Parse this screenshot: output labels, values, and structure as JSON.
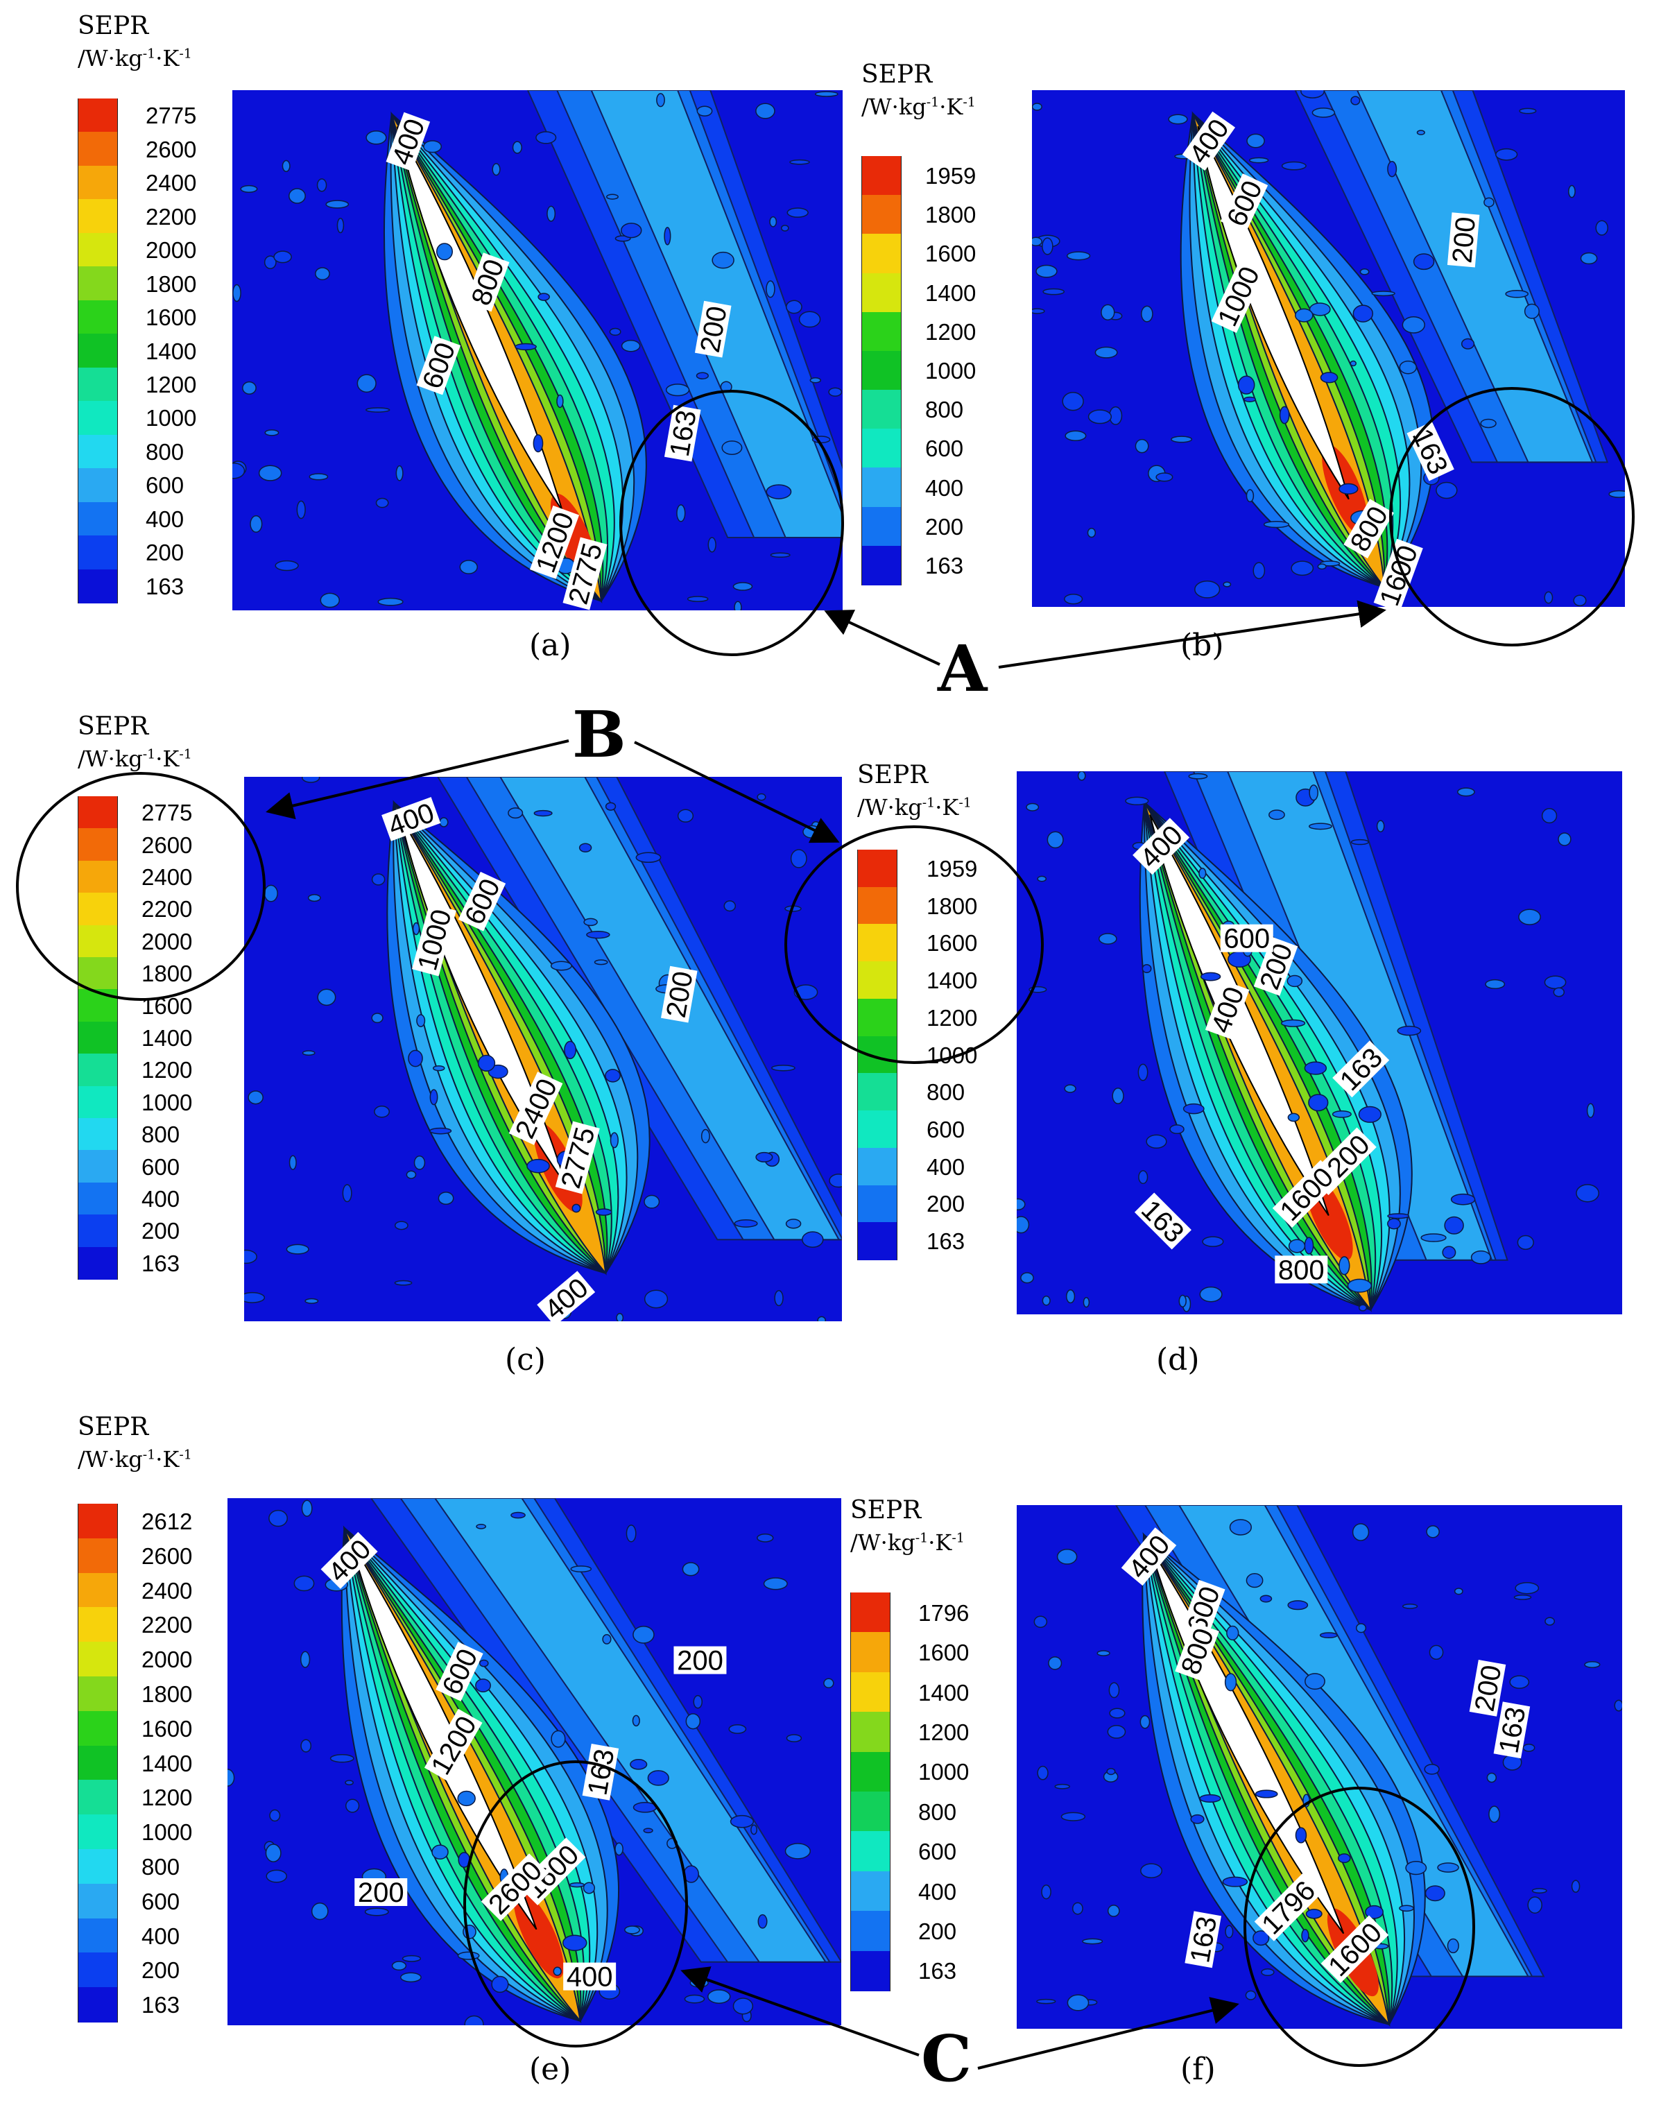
{
  "legend_title": "SEPR",
  "legend_unit_prefix": "/W·kg",
  "legend_unit_mid": "·K",
  "legend_unit_sup": "-1",
  "color_scale": [
    "#0a10d8",
    "#0b3ff0",
    "#1373f2",
    "#2aa9f2",
    "#22d8f0",
    "#10e8c0",
    "#15de95",
    "#12d05a",
    "#10c225",
    "#2bd21a",
    "#84d81c",
    "#d6e60e",
    "#f7d20c",
    "#f6a70a",
    "#f26a08",
    "#e82a08"
  ],
  "panel_captions": [
    "(a)",
    "(b)",
    "(c)",
    "(d)",
    "(e)",
    "(f)"
  ],
  "callouts": {
    "A": "A",
    "B": "B",
    "C": "C"
  },
  "chart_data": [
    {
      "type": "heatmap",
      "panel": "(a)",
      "title": "SEPR /W·kg-1·K-1",
      "legend_levels": [
        "2775",
        "2600",
        "2400",
        "2200",
        "2000",
        "1800",
        "1600",
        "1400",
        "1200",
        "1000",
        "800",
        "600",
        "400",
        "200",
        "163"
      ],
      "contour_labels": [
        "400",
        "800",
        "600",
        "200",
        "163",
        "1200",
        "2775"
      ]
    },
    {
      "type": "heatmap",
      "panel": "(b)",
      "title": "SEPR /W·kg-1·K-1",
      "legend_levels": [
        "1959",
        "1800",
        "1600",
        "1400",
        "1200",
        "1000",
        "800",
        "600",
        "400",
        "200",
        "163"
      ],
      "contour_labels": [
        "400",
        "600",
        "1000",
        "200",
        "163",
        "800",
        "1600"
      ]
    },
    {
      "type": "heatmap",
      "panel": "(c)",
      "title": "SEPR /W·kg-1·K-1",
      "legend_levels": [
        "2775",
        "2600",
        "2400",
        "2200",
        "2000",
        "1800",
        "1600",
        "1400",
        "1200",
        "1000",
        "800",
        "600",
        "400",
        "200",
        "163"
      ],
      "contour_labels": [
        "400",
        "600",
        "1000",
        "200",
        "2400",
        "2775",
        "400"
      ]
    },
    {
      "type": "heatmap",
      "panel": "(d)",
      "title": "SEPR /W·kg-1·K-1",
      "legend_levels": [
        "1959",
        "1800",
        "1600",
        "1400",
        "1200",
        "1000",
        "800",
        "600",
        "400",
        "200",
        "163"
      ],
      "contour_labels": [
        "400",
        "200",
        "400",
        "600",
        "163",
        "1200",
        "1600",
        "163",
        "800"
      ]
    },
    {
      "type": "heatmap",
      "panel": "(e)",
      "title": "SEPR /W·kg-1·K-1",
      "legend_levels": [
        "2612",
        "2600",
        "2400",
        "2200",
        "2000",
        "1800",
        "1600",
        "1400",
        "1200",
        "1000",
        "800",
        "600",
        "400",
        "200",
        "163"
      ],
      "contour_labels": [
        "400",
        "600",
        "200",
        "1200",
        "163",
        "1600",
        "2600",
        "200",
        "400"
      ]
    },
    {
      "type": "heatmap",
      "panel": "(f)",
      "title": "SEPR /W·kg-1·K-1",
      "legend_levels": [
        "1796",
        "1600",
        "1400",
        "1200",
        "1000",
        "800",
        "600",
        "400",
        "200",
        "163"
      ],
      "contour_labels": [
        "400",
        "600",
        "800",
        "200",
        "163",
        "1796",
        "1600",
        "163"
      ]
    }
  ]
}
